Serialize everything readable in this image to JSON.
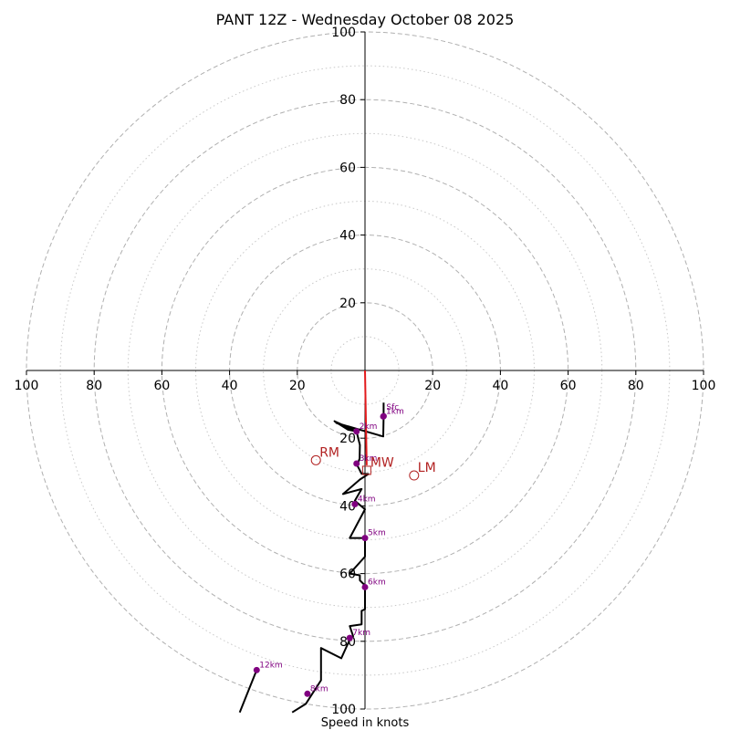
{
  "chart_data": {
    "type": "hodograph",
    "title": "PANT 12Z - Wednesday October 08 2025",
    "xlabel": "Speed in knots",
    "axis_range": [
      -100,
      100
    ],
    "rings_major": [
      20,
      40,
      60,
      80,
      100
    ],
    "rings_minor": [
      10,
      30,
      50,
      70,
      90
    ],
    "ticks": {
      "x": [
        {
          "value": -100,
          "label": "100"
        },
        {
          "value": -80,
          "label": "80"
        },
        {
          "value": -60,
          "label": "60"
        },
        {
          "value": -40,
          "label": "40"
        },
        {
          "value": -20,
          "label": "20"
        },
        {
          "value": 20,
          "label": "20"
        },
        {
          "value": 40,
          "label": "40"
        },
        {
          "value": 60,
          "label": "60"
        },
        {
          "value": 80,
          "label": "80"
        },
        {
          "value": 100,
          "label": "100"
        }
      ],
      "y": [
        {
          "value": 100,
          "label": "100"
        },
        {
          "value": 80,
          "label": "80"
        },
        {
          "value": 60,
          "label": "60"
        },
        {
          "value": 40,
          "label": "40"
        },
        {
          "value": 20,
          "label": "20"
        },
        {
          "value": -20,
          "label": "20"
        },
        {
          "value": -40,
          "label": "40"
        },
        {
          "value": -60,
          "label": "60"
        },
        {
          "value": -80,
          "label": "80"
        },
        {
          "value": -100,
          "label": "100"
        }
      ]
    },
    "hodograph_trace": [
      [
        5.5,
        -9.5
      ],
      [
        5.5,
        -13.5
      ],
      [
        5.4,
        -19.5
      ],
      [
        -8.5,
        -15.5
      ],
      [
        -3.5,
        -17.5
      ],
      [
        -9,
        -15
      ],
      [
        -5,
        -17.5
      ],
      [
        -2.5,
        -18
      ],
      [
        -1.5,
        -22
      ],
      [
        -1.6,
        -26
      ],
      [
        -2.3,
        -28
      ],
      [
        -1,
        -30.5
      ],
      [
        1,
        -30.6
      ],
      [
        -1.5,
        -32.2
      ],
      [
        -6.5,
        -36.5
      ],
      [
        -1,
        -35
      ],
      [
        -3,
        -38.5
      ],
      [
        0,
        -41
      ],
      [
        -4.5,
        -49.5
      ],
      [
        0,
        -49.5
      ],
      [
        0,
        -55
      ],
      [
        -4.5,
        -60
      ],
      [
        -1.5,
        -60.5
      ],
      [
        -1.5,
        -62
      ],
      [
        0,
        -63.5
      ],
      [
        0,
        -70.5
      ],
      [
        -1,
        -71
      ],
      [
        -1,
        -75
      ],
      [
        -4.5,
        -75.5
      ],
      [
        -3.5,
        -78.5
      ],
      [
        -4.5,
        -79.5
      ],
      [
        -7,
        -85
      ],
      [
        -13,
        -82
      ],
      [
        -13,
        -91.5
      ],
      [
        -17.5,
        -98.5
      ],
      [
        -21.5,
        -101
      ]
    ],
    "upper_segment": [
      [
        -32,
        -88.5
      ],
      [
        -37,
        -101
      ]
    ],
    "height_markers": [
      {
        "label": "Sfc",
        "u": 5.5,
        "v": -13.5
      },
      {
        "label": "1km",
        "u": 5.4,
        "v": -13.6
      },
      {
        "label": "2km",
        "u": -2.5,
        "v": -18
      },
      {
        "label": "3km",
        "u": -2.5,
        "v": -27.5
      },
      {
        "label": "4km",
        "u": -3,
        "v": -39.5
      },
      {
        "label": "5km",
        "u": 0,
        "v": -49.5
      },
      {
        "label": "6km",
        "u": 0,
        "v": -64
      },
      {
        "label": "7km",
        "u": -4.5,
        "v": -79
      },
      {
        "label": "8km",
        "u": -17,
        "v": -95.5
      },
      {
        "label": "12km",
        "u": -32,
        "v": -88.5
      }
    ],
    "storm_motions": [
      {
        "label": "RM",
        "u": -14.5,
        "v": -26.5
      },
      {
        "label": "MW",
        "u": 0.5,
        "v": -29.5
      },
      {
        "label": "LM",
        "u": 14.5,
        "v": -31
      }
    ],
    "shear_vector": {
      "from": [
        0,
        0
      ],
      "to": [
        0.5,
        -28
      ]
    },
    "colors": {
      "trace": "#000000",
      "markers": "#800080",
      "motions": "#b22222",
      "shear": "#e31a1c",
      "rings": "#b0b0b0"
    }
  }
}
